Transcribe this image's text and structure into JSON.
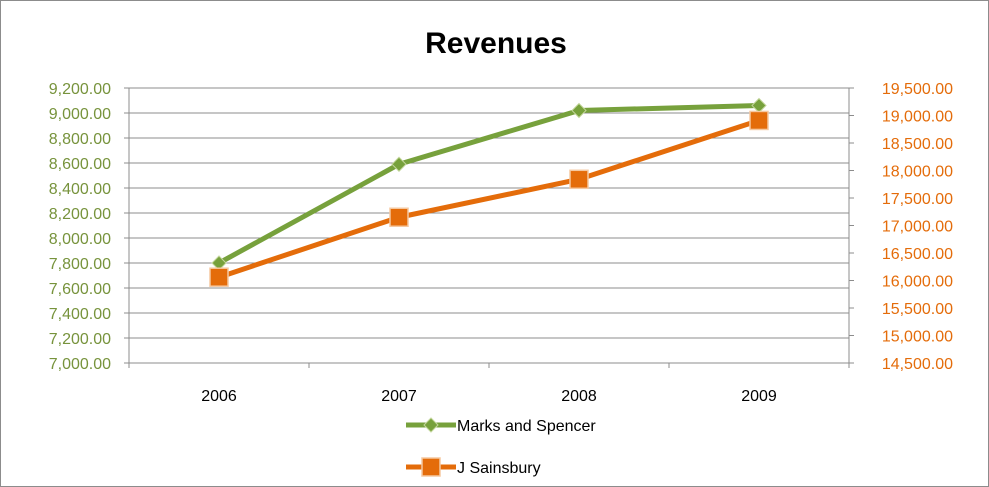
{
  "chart_data": {
    "type": "line",
    "title": "Revenues",
    "categories": [
      "2006",
      "2007",
      "2008",
      "2009"
    ],
    "series": [
      {
        "name": "Marks and Spencer",
        "axis": "left",
        "color": "#77a13c",
        "marker": "diamond",
        "values": [
          7800,
          8590,
          9020,
          9060
        ]
      },
      {
        "name": "J Sainsbury",
        "axis": "right",
        "color": "#e46c0a",
        "marker": "square",
        "values": [
          16060,
          17150,
          17840,
          18910
        ]
      }
    ],
    "y_left": {
      "ylim": [
        7000,
        9200
      ],
      "ticks": [
        "9,200.00",
        "9,000.00",
        "8,800.00",
        "8,600.00",
        "8,400.00",
        "8,200.00",
        "8,000.00",
        "7,800.00",
        "7,600.00",
        "7,400.00",
        "7,200.00",
        "7,000.00"
      ],
      "tick_color": "#77933c"
    },
    "y_right": {
      "ylim": [
        14500,
        19500
      ],
      "ticks": [
        "19,500.00",
        "19,000.00",
        "18,500.00",
        "18,000.00",
        "17,500.00",
        "17,000.00",
        "16,500.00",
        "16,000.00",
        "15,500.00",
        "15,000.00",
        "14,500.00"
      ],
      "tick_color": "#e46c0a"
    },
    "grid": true,
    "legend_position": "bottom"
  }
}
